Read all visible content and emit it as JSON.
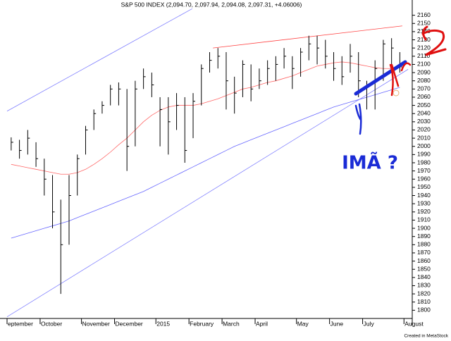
{
  "chart_data": {
    "type": "ohlc",
    "title": "S&P 500 INDEX (2,094.70, 2,097.94, 2,094.08, 2,097.31, +4.06006)",
    "footer": "Created in MetaStock",
    "annotations": [
      "IMÃ ?"
    ],
    "categories": [
      "eptember",
      null,
      null,
      null,
      "October",
      null,
      null,
      null,
      null,
      "November",
      null,
      null,
      null,
      "December",
      null,
      null,
      null,
      null,
      "2015",
      null,
      null,
      null,
      "February",
      null,
      null,
      null,
      "March",
      null,
      null,
      null,
      "April",
      null,
      null,
      null,
      null,
      "May",
      null,
      null,
      null,
      "June",
      null,
      null,
      null,
      "July",
      null,
      null,
      null,
      null,
      "August"
    ],
    "high": [
      2011,
      2008,
      2020,
      2005,
      1985,
      1965,
      1935,
      1965,
      1990,
      2025,
      2045,
      2055,
      2075,
      2078,
      2070,
      2080,
      2095,
      2090,
      2060,
      2060,
      2065,
      2060,
      2065,
      2100,
      2115,
      2120,
      2115,
      2085,
      2105,
      2100,
      2095,
      2105,
      2110,
      2120,
      2110,
      2120,
      2135,
      2135,
      2130,
      2115,
      2110,
      2125,
      2115,
      2080,
      2105,
      2130,
      2132,
      2115,
      null
    ],
    "low": [
      1995,
      1985,
      1990,
      1975,
      1940,
      1900,
      1820,
      1880,
      1940,
      1990,
      2020,
      2040,
      2050,
      2050,
      1970,
      2000,
      2070,
      2060,
      2000,
      1990,
      2020,
      1980,
      2010,
      2050,
      2090,
      2095,
      2045,
      2040,
      2060,
      2055,
      2070,
      2075,
      2080,
      2095,
      2070,
      2085,
      2105,
      2100,
      2095,
      2080,
      2075,
      2090,
      2060,
      2045,
      2045,
      2080,
      2095,
      2090,
      null
    ],
    "close": [
      2005,
      1995,
      2010,
      1985,
      1960,
      1920,
      1880,
      1940,
      1985,
      2020,
      2040,
      2050,
      2070,
      2070,
      2000,
      2070,
      2085,
      2075,
      2045,
      2030,
      2050,
      1995,
      2055,
      2095,
      2105,
      2110,
      2080,
      2065,
      2100,
      2070,
      2080,
      2095,
      2100,
      2110,
      2095,
      2115,
      2125,
      2120,
      2110,
      2095,
      2085,
      2110,
      2080,
      2075,
      2095,
      2125,
      2120,
      2097,
      null
    ],
    "bar_color": "#000000",
    "moving_averages": [
      {
        "color": "#ff6666",
        "values": [
          1978,
          1976,
          1974,
          1972,
          1970,
          1968,
          1966,
          1966,
          1968,
          1972,
          1978,
          1985,
          1993,
          2002,
          2010,
          2020,
          2030,
          2038,
          2044,
          2048,
          2050,
          2050,
          2050,
          2052,
          2055,
          2058,
          2062,
          2066,
          2070,
          2072,
          2075,
          2078,
          2080,
          2083,
          2086,
          2090,
          2094,
          2098,
          2100,
          2102,
          2103,
          2102,
          2100,
          2098,
          2096,
          2095,
          2095,
          2096,
          null
        ]
      },
      {
        "color": "#6666ff",
        "values": [
          1888,
          1891,
          1894,
          1897,
          1900,
          1903,
          1906,
          1909,
          1913,
          1917,
          1921,
          1925,
          1929,
          1933,
          1937,
          1941,
          1945,
          1950,
          1955,
          1960,
          1965,
          1970,
          1975,
          1980,
          1985,
          1990,
          1995,
          2000,
          2004,
          2008,
          2012,
          2016,
          2020,
          2024,
          2028,
          2032,
          2036,
          2040,
          2044,
          2048,
          2051,
          2054,
          2057,
          2060,
          2063,
          2066,
          2069,
          2072,
          null
        ]
      }
    ],
    "trendlines": [
      {
        "color": "#8080ff",
        "x": [
          -0.5,
          21.9
        ],
        "y": [
          2043,
          2168
        ]
      },
      {
        "color": "#8080ff",
        "x": [
          -0.5,
          48
        ],
        "y": [
          1792,
          2094
        ]
      },
      {
        "color": "#ff4444",
        "x": [
          24.4,
          47.3
        ],
        "y": [
          2120,
          2147
        ]
      }
    ],
    "ylim": [
      1790,
      2170
    ],
    "yticks": [
      1800,
      1810,
      1820,
      1830,
      1840,
      1850,
      1860,
      1870,
      1880,
      1890,
      1900,
      1910,
      1920,
      1930,
      1940,
      1950,
      1960,
      1970,
      1980,
      1990,
      2000,
      2010,
      2020,
      2030,
      2040,
      2050,
      2060,
      2070,
      2080,
      2090,
      2100,
      2110,
      2120,
      2130,
      2140,
      2150,
      2160
    ]
  }
}
